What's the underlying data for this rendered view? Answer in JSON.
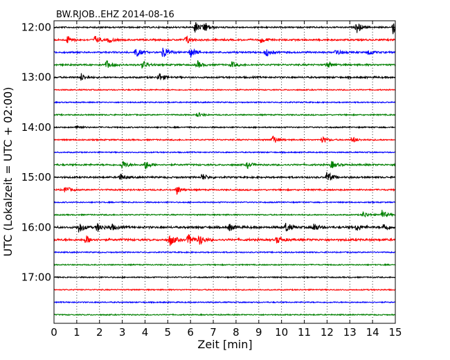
{
  "chart_data": {
    "type": "line",
    "title": "BW.RJOB..EHZ 2014-08-16",
    "xlabel": "Zeit  [min]",
    "ylabel": "UTC (Lokalzeit = UTC + 02:00)",
    "xlim": [
      0,
      15
    ],
    "x_ticks": [
      "0",
      "1",
      "2",
      "3",
      "4",
      "5",
      "6",
      "7",
      "8",
      "9",
      "10",
      "11",
      "12",
      "13",
      "14",
      "15"
    ],
    "y_ticks": [
      "12:00",
      "13:00",
      "14:00",
      "15:00",
      "16:00",
      "17:00"
    ],
    "grid": "vertical dotted",
    "trace_interval_minutes": 15,
    "trace_colors": [
      "#000000",
      "#ff0000",
      "#0000ff",
      "#008000"
    ],
    "traces": [
      {
        "start": "12:00",
        "activity": 0.25,
        "bursts": [
          [
            6.2,
            1.0
          ],
          [
            6.6,
            0.9
          ],
          [
            13.3,
            0.9
          ],
          [
            14.9,
            1.1
          ]
        ]
      },
      {
        "start": "12:15",
        "activity": 0.35,
        "bursts": [
          [
            0.6,
            0.6
          ],
          [
            1.8,
            0.6
          ],
          [
            2.4,
            0.5
          ],
          [
            5.8,
            0.7
          ],
          [
            9.1,
            0.5
          ]
        ]
      },
      {
        "start": "12:30",
        "activity": 0.35,
        "bursts": [
          [
            3.6,
            0.8
          ],
          [
            4.8,
            1.1
          ],
          [
            6.0,
            0.9
          ],
          [
            9.3,
            0.7
          ],
          [
            12.4,
            0.6
          ],
          [
            13.8,
            0.5
          ]
        ]
      },
      {
        "start": "12:45",
        "activity": 0.35,
        "bursts": [
          [
            2.3,
            0.7
          ],
          [
            3.9,
            0.7
          ],
          [
            6.3,
            0.6
          ],
          [
            7.8,
            0.5
          ],
          [
            12.0,
            0.5
          ]
        ]
      },
      {
        "start": "13:00",
        "activity": 0.35,
        "bursts": [
          [
            1.2,
            0.6
          ],
          [
            4.6,
            0.8
          ]
        ]
      },
      {
        "start": "13:15",
        "activity": 0.1,
        "bursts": []
      },
      {
        "start": "13:30",
        "activity": 0.1,
        "bursts": []
      },
      {
        "start": "13:45",
        "activity": 0.15,
        "bursts": [
          [
            6.3,
            0.4
          ]
        ]
      },
      {
        "start": "14:00",
        "activity": 0.15,
        "bursts": [
          [
            1.0,
            0.3
          ]
        ]
      },
      {
        "start": "14:15",
        "activity": 0.2,
        "bursts": [
          [
            9.6,
            0.8
          ],
          [
            11.8,
            0.5
          ],
          [
            13.1,
            0.5
          ]
        ]
      },
      {
        "start": "14:30",
        "activity": 0.1,
        "bursts": []
      },
      {
        "start": "14:45",
        "activity": 0.35,
        "bursts": [
          [
            3.0,
            0.7
          ],
          [
            4.0,
            0.8
          ],
          [
            8.5,
            0.5
          ],
          [
            12.2,
            0.6
          ]
        ]
      },
      {
        "start": "15:00",
        "activity": 0.35,
        "bursts": [
          [
            2.9,
            0.6
          ],
          [
            6.5,
            0.6
          ],
          [
            12.0,
            1.0
          ]
        ]
      },
      {
        "start": "15:15",
        "activity": 0.25,
        "bursts": [
          [
            0.5,
            0.6
          ],
          [
            5.4,
            0.7
          ]
        ]
      },
      {
        "start": "15:30",
        "activity": 0.1,
        "bursts": []
      },
      {
        "start": "15:45",
        "activity": 0.15,
        "bursts": [
          [
            13.6,
            0.5
          ],
          [
            14.4,
            0.8
          ]
        ]
      },
      {
        "start": "16:00",
        "activity": 0.55,
        "bursts": [
          [
            1.1,
            0.9
          ],
          [
            1.9,
            0.7
          ],
          [
            2.5,
            0.6
          ],
          [
            7.7,
            0.6
          ],
          [
            10.2,
            0.8
          ],
          [
            11.4,
            0.7
          ],
          [
            13.3,
            0.6
          ],
          [
            14.5,
            0.7
          ]
        ]
      },
      {
        "start": "16:15",
        "activity": 0.55,
        "bursts": [
          [
            1.4,
            0.7
          ],
          [
            5.1,
            1.0
          ],
          [
            5.9,
            0.9
          ],
          [
            6.4,
            0.8
          ],
          [
            9.8,
            0.6
          ]
        ]
      },
      {
        "start": "16:30",
        "activity": 0.1,
        "bursts": []
      },
      {
        "start": "16:45",
        "activity": 0.1,
        "bursts": []
      },
      {
        "start": "17:00",
        "activity": 0.1,
        "bursts": []
      },
      {
        "start": "17:15",
        "activity": 0.1,
        "bursts": []
      },
      {
        "start": "17:30",
        "activity": 0.1,
        "bursts": []
      },
      {
        "start": "17:45",
        "activity": 0.1,
        "bursts": []
      }
    ]
  }
}
